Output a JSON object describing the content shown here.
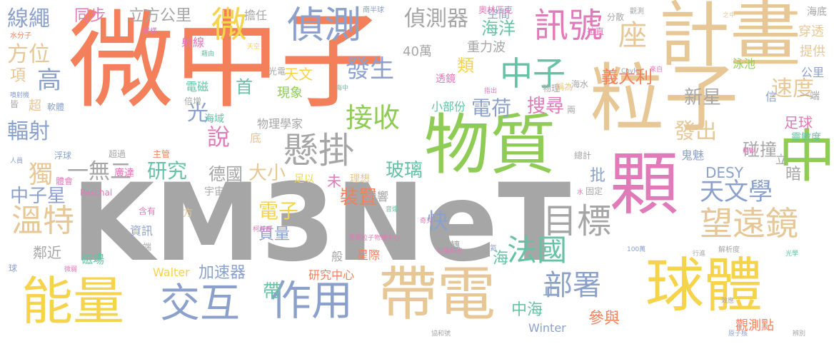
{
  "words": [
    {
      "text": "微中子",
      "color": "#f47f5b"
    },
    {
      "text": "KM3NeT",
      "color": "#a6a6a6"
    },
    {
      "text": "計畫",
      "color": "#e6c795"
    },
    {
      "text": "粒子",
      "color": "#e6c795"
    },
    {
      "text": "物質",
      "color": "#8fcc56"
    },
    {
      "text": "顆",
      "color": "#e07ab8"
    },
    {
      "text": "中",
      "color": "#8fcc56"
    },
    {
      "text": "球體",
      "color": "#f5d34b"
    },
    {
      "text": "帶電",
      "color": "#e6c795"
    },
    {
      "text": "能量",
      "color": "#f5d34b"
    },
    {
      "text": "交互",
      "color": "#8ba1cc"
    },
    {
      "text": "作用",
      "color": "#8ba1cc"
    },
    {
      "text": "偵測",
      "color": "#8ba1cc"
    },
    {
      "text": "訊號",
      "color": "#e07ab8"
    },
    {
      "text": "微",
      "color": "#f5d34b"
    },
    {
      "text": "懸掛",
      "color": "#a6a6a6"
    },
    {
      "text": "目標",
      "color": "#a6a6a6"
    },
    {
      "text": "望遠鏡",
      "color": "#e6c795"
    },
    {
      "text": "溫特",
      "color": "#e6c795"
    },
    {
      "text": "中子",
      "color": "#66c2a4"
    },
    {
      "text": "法國",
      "color": "#66c2a4"
    },
    {
      "text": "部署",
      "color": "#8ba1cc"
    },
    {
      "text": "天文學",
      "color": "#8ba1cc"
    },
    {
      "text": "接收",
      "color": "#8fcc56"
    },
    {
      "text": "發生",
      "color": "#8ba1cc"
    },
    {
      "text": "偵測器",
      "color": "#a6a6a6"
    },
    {
      "text": "線繩",
      "color": "#8ba1cc"
    },
    {
      "text": "方位",
      "color": "#e6c795"
    },
    {
      "text": "高",
      "color": "#8ba1cc"
    },
    {
      "text": "輻射",
      "color": "#8ba1cc"
    },
    {
      "text": "研究",
      "color": "#66c2a4"
    },
    {
      "text": "一無二",
      "color": "#a6a6a6"
    },
    {
      "text": "獨",
      "color": "#e6c795"
    },
    {
      "text": "中子星",
      "color": "#8ba1cc"
    },
    {
      "text": "速度",
      "color": "#e6c795"
    },
    {
      "text": "碰撞",
      "color": "#a6a6a6"
    },
    {
      "text": "發出",
      "color": "#e6c795"
    },
    {
      "text": "新星",
      "color": "#a6a6a6"
    },
    {
      "text": "電子",
      "color": "#f5d34b"
    },
    {
      "text": "大小",
      "color": "#e6c795"
    },
    {
      "text": "德國",
      "color": "#a6a6a6"
    },
    {
      "text": "玻璃",
      "color": "#66c2a4"
    },
    {
      "text": "搜尋",
      "color": "#e07ab8"
    },
    {
      "text": "電荷",
      "color": "#8ba1cc"
    },
    {
      "text": "義大利",
      "color": "#f47f5b"
    },
    {
      "text": "座",
      "color": "#e6c795"
    },
    {
      "text": "海洋",
      "color": "#66c2a4"
    },
    {
      "text": "空間",
      "color": "#8ba1cc"
    },
    {
      "text": "立方公里",
      "color": "#a6a6a6"
    },
    {
      "text": "同步",
      "color": "#e07ab8"
    },
    {
      "text": "說",
      "color": "#e07ab8"
    },
    {
      "text": "光",
      "color": "#8ba1cc"
    },
    {
      "text": "首",
      "color": "#66c2a4"
    },
    {
      "text": "快",
      "color": "#8ba1cc"
    },
    {
      "text": "裝置",
      "color": "#f47f5b"
    },
    {
      "text": "質量",
      "color": "#8ba1cc"
    },
    {
      "text": "中海",
      "color": "#66c2a4"
    },
    {
      "text": "加速器",
      "color": "#8ba1cc"
    },
    {
      "text": "參與",
      "color": "#f47f5b"
    },
    {
      "text": "DESY",
      "color": "#8ba1cc"
    },
    {
      "text": "足球",
      "color": "#e07ab8"
    },
    {
      "text": "重力波",
      "color": "#a6a6a6"
    },
    {
      "text": "40萬",
      "color": "#a6a6a6"
    },
    {
      "text": "天文",
      "color": "#f5d34b"
    },
    {
      "text": "現象",
      "color": "#8fcc56"
    },
    {
      "text": "物理學家",
      "color": "#a6a6a6"
    },
    {
      "text": "研究中心",
      "color": "#f47f5b"
    },
    {
      "text": "Winter",
      "color": "#8ba1cc"
    },
    {
      "text": "Walter",
      "color": "#f5d34b"
    },
    {
      "text": "觀測點",
      "color": "#f47f5b"
    },
    {
      "text": "類",
      "color": "#f5d34b"
    },
    {
      "text": "擔任",
      "color": "#a6a6a6"
    },
    {
      "text": "小部份",
      "color": "#66c2a4"
    },
    {
      "text": "射線",
      "color": "#e07ab8"
    },
    {
      "text": "電磁",
      "color": "#66c2a4"
    },
    {
      "text": "鄰近",
      "color": "#a6a6a6"
    },
    {
      "text": "磁場",
      "color": "#66c2a4"
    },
    {
      "text": "廣達",
      "color": "#e07ab8"
    },
    {
      "text": "宇宙",
      "color": "#a6a6a6"
    },
    {
      "text": "影響",
      "color": "#a6a6a6"
    },
    {
      "text": "星際",
      "color": "#f47f5b"
    },
    {
      "text": "理想",
      "color": "#e6c795"
    },
    {
      "text": "未",
      "color": "#e07ab8"
    },
    {
      "text": "足以",
      "color": "#f5d34b"
    },
    {
      "text": "批",
      "color": "#8ba1cc"
    },
    {
      "text": "正",
      "color": "#8ba1cc"
    },
    {
      "text": "帶",
      "color": "#66c2a4"
    },
    {
      "text": "海",
      "color": "#66c2a4"
    },
    {
      "text": "暗",
      "color": "#a6a6a6"
    },
    {
      "text": "鬼魅",
      "color": "#8ba1cc"
    },
    {
      "text": "提供",
      "color": "#e6c795"
    },
    {
      "text": "穿透",
      "color": "#e6c795"
    },
    {
      "text": "海底",
      "color": "#a6a6a6"
    },
    {
      "text": "奧林匹克",
      "color": "#e07ab8"
    },
    {
      "text": "南半球",
      "color": "#8ba1cc"
    },
    {
      "text": "分散",
      "color": "#a6a6a6"
    },
    {
      "text": "觀測",
      "color": "#a6a6a6"
    },
    {
      "text": "之中",
      "color": "#e6c795"
    },
    {
      "text": "泳池",
      "color": "#8fcc56"
    },
    {
      "text": "信",
      "color": "#8ba1cc"
    },
    {
      "text": "公里",
      "color": "#8ba1cc"
    },
    {
      "text": "一端",
      "color": "#a6a6a6"
    },
    {
      "text": "物理",
      "color": "#a6a6a6"
    },
    {
      "text": "稱為",
      "color": "#e6c795"
    },
    {
      "text": "海水",
      "color": "#a6a6a6"
    },
    {
      "text": "透鏡",
      "color": "#e07ab8"
    },
    {
      "text": "光電",
      "color": "#a6a6a6"
    },
    {
      "text": "天空",
      "color": "#f5d34b"
    },
    {
      "text": "藉由",
      "color": "#66c2a4"
    },
    {
      "text": "縱橫",
      "color": "#e07ab8"
    },
    {
      "text": "水分子",
      "color": "#f47f5b"
    },
    {
      "text": "項",
      "color": "#e6c795"
    },
    {
      "text": "皆",
      "color": "#a6a6a6"
    },
    {
      "text": "超",
      "color": "#e6c795"
    },
    {
      "text": "軟體",
      "color": "#8ba1cc"
    },
    {
      "text": "倍增",
      "color": "#a6a6a6"
    },
    {
      "text": "海域",
      "color": "#66c2a4"
    },
    {
      "text": "底",
      "color": "#e6c795"
    },
    {
      "text": "主管",
      "color": "#f47f5b"
    },
    {
      "text": "超過",
      "color": "#a6a6a6"
    },
    {
      "text": "浮球",
      "color": "#8ba1cc"
    },
    {
      "text": "人員",
      "color": "#8ba1cc"
    },
    {
      "text": "體會",
      "color": "#e07ab8"
    },
    {
      "text": "Paschal",
      "color": "#e07ab8"
    },
    {
      "text": "含有",
      "color": "#e07ab8"
    },
    {
      "text": "資訊",
      "color": "#8ba1cc"
    },
    {
      "text": "方",
      "color": "#e6c795"
    },
    {
      "text": "柯益爾",
      "color": "#e07ab8"
    },
    {
      "text": "端",
      "color": "#a6a6a6"
    },
    {
      "text": "般",
      "color": "#a6a6a6"
    },
    {
      "text": "偏轉",
      "color": "#a6a6a6"
    },
    {
      "text": "馬賽粒子物理中心",
      "color": "#e07ab8"
    },
    {
      "text": "切倫科夫",
      "color": "#e07ab8"
    },
    {
      "text": "氦",
      "color": "#8ba1cc"
    },
    {
      "text": "奇克",
      "color": "#e07ab8"
    },
    {
      "text": "音爆",
      "color": "#66c2a4"
    },
    {
      "text": "100萬",
      "color": "#8ba1cc"
    },
    {
      "text": "解析度",
      "color": "#a6a6a6"
    },
    {
      "text": "行進",
      "color": "#a6a6a6"
    },
    {
      "text": "光學",
      "color": "#66c2a4"
    },
    {
      "text": "效應",
      "color": "#a6a6a6"
    },
    {
      "text": "原子核",
      "color": "#8ba1cc"
    },
    {
      "text": "辨別",
      "color": "#a6a6a6"
    },
    {
      "text": "協和號",
      "color": "#a6a6a6"
    },
    {
      "text": "微弱",
      "color": "#e07ab8"
    },
    {
      "text": "球",
      "color": "#8ba1cc"
    },
    {
      "text": "噴射機",
      "color": "#8ba1cc"
    },
    {
      "text": "海中",
      "color": "#66c2a4"
    },
    {
      "text": "指出",
      "color": "#e07ab8"
    },
    {
      "text": "兩",
      "color": "#a6a6a6"
    },
    {
      "text": "拉直",
      "color": "#e07ab8"
    },
    {
      "text": "Coyle",
      "color": "#8ba1cc"
    },
    {
      "text": "來自",
      "color": "#e07ab8"
    },
    {
      "text": "靈敏度",
      "color": "#66c2a4"
    },
    {
      "text": "類似",
      "color": "#e07ab8"
    },
    {
      "text": "立",
      "color": "#a6a6a6"
    },
    {
      "text": "總計",
      "color": "#a6a6a6"
    },
    {
      "text": "固定",
      "color": "#a6a6a6"
    },
    {
      "text": "水",
      "color": "#e07ab8"
    }
  ]
}
